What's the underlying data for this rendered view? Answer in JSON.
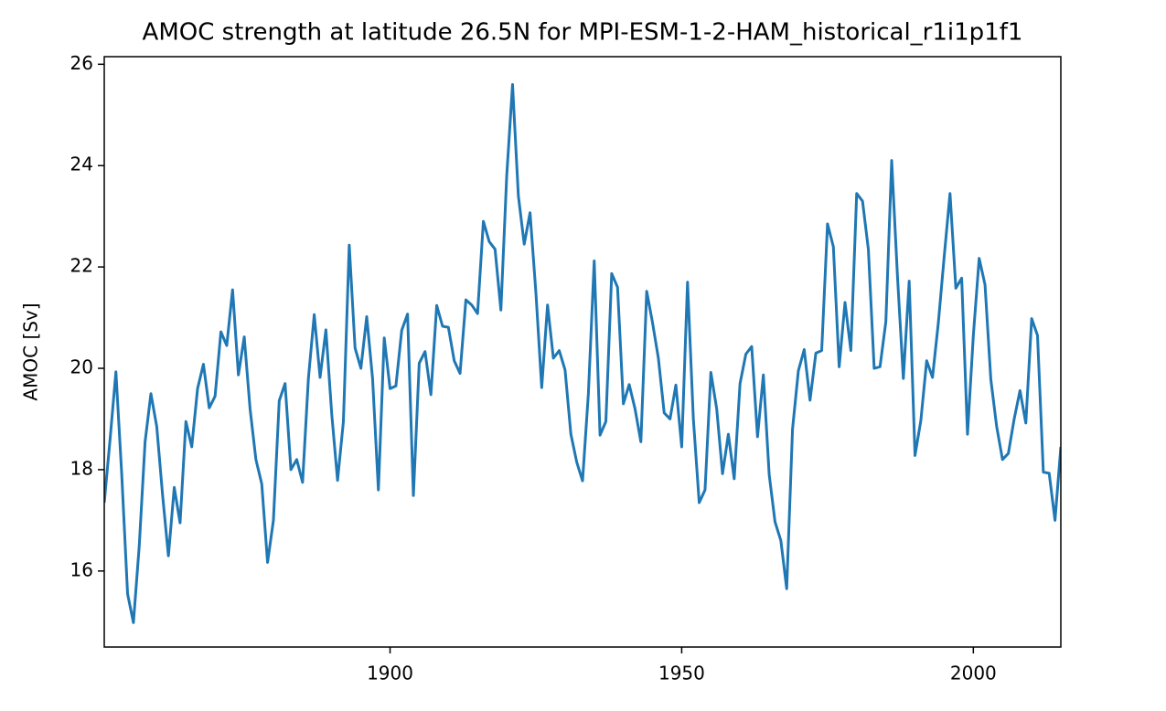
{
  "chart_data": {
    "type": "line",
    "title": "AMOC strength at latitude 26.5N for MPI-ESM-1-2-HAM_historical_r1i1p1f1",
    "ylabel": "AMOC [Sv]",
    "x": [
      1851,
      1852,
      1853,
      1854,
      1855,
      1856,
      1857,
      1858,
      1859,
      1860,
      1861,
      1862,
      1863,
      1864,
      1865,
      1866,
      1867,
      1868,
      1869,
      1870,
      1871,
      1872,
      1873,
      1874,
      1875,
      1876,
      1877,
      1878,
      1879,
      1880,
      1881,
      1882,
      1883,
      1884,
      1885,
      1886,
      1887,
      1888,
      1889,
      1890,
      1891,
      1892,
      1893,
      1894,
      1895,
      1896,
      1897,
      1898,
      1899,
      1900,
      1901,
      1902,
      1903,
      1904,
      1905,
      1906,
      1907,
      1908,
      1909,
      1910,
      1911,
      1912,
      1913,
      1914,
      1915,
      1916,
      1917,
      1918,
      1919,
      1920,
      1921,
      1922,
      1923,
      1924,
      1925,
      1926,
      1927,
      1928,
      1929,
      1930,
      1931,
      1932,
      1933,
      1934,
      1935,
      1936,
      1937,
      1938,
      1939,
      1940,
      1941,
      1942,
      1943,
      1944,
      1945,
      1946,
      1947,
      1948,
      1949,
      1950,
      1951,
      1952,
      1953,
      1954,
      1955,
      1956,
      1957,
      1958,
      1959,
      1960,
      1961,
      1962,
      1963,
      1964,
      1965,
      1966,
      1967,
      1968,
      1969,
      1970,
      1971,
      1972,
      1973,
      1974,
      1975,
      1976,
      1977,
      1978,
      1979,
      1980,
      1981,
      1982,
      1983,
      1984,
      1985,
      1986,
      1987,
      1988,
      1989,
      1990,
      1991,
      1992,
      1993,
      1994,
      1995,
      1996,
      1997,
      1998,
      1999,
      2000,
      2001,
      2002,
      2003,
      2004,
      2005,
      2006,
      2007,
      2008,
      2009,
      2010,
      2011,
      2012,
      2013,
      2014,
      2015
    ],
    "series": [
      {
        "color": "#1f77b4",
        "values": [
          17.35,
          18.6,
          19.93,
          17.9,
          15.55,
          14.98,
          16.5,
          18.55,
          19.5,
          18.85,
          17.5,
          16.3,
          17.65,
          16.95,
          18.95,
          18.45,
          19.6,
          20.08,
          19.22,
          19.45,
          20.72,
          20.45,
          21.55,
          19.87,
          20.62,
          19.2,
          18.2,
          17.72,
          16.17,
          17.0,
          19.36,
          19.7,
          18.0,
          18.2,
          17.75,
          19.8,
          21.06,
          19.82,
          20.76,
          19.1,
          17.79,
          18.95,
          22.43,
          20.4,
          20.0,
          21.02,
          19.8,
          17.6,
          20.6,
          19.6,
          19.65,
          20.75,
          21.07,
          17.49,
          20.1,
          20.33,
          19.48,
          21.24,
          20.83,
          20.81,
          20.15,
          19.9,
          21.35,
          21.25,
          21.08,
          22.9,
          22.5,
          22.35,
          21.15,
          23.8,
          25.6,
          23.4,
          22.45,
          23.07,
          21.5,
          19.62,
          21.25,
          20.2,
          20.35,
          19.97,
          18.7,
          18.15,
          17.78,
          19.5,
          22.12,
          18.68,
          18.95,
          21.87,
          21.6,
          19.3,
          19.68,
          19.2,
          18.55,
          21.52,
          20.9,
          20.2,
          19.12,
          19.0,
          19.67,
          18.45,
          21.7,
          19.0,
          17.35,
          17.6,
          19.92,
          19.2,
          17.92,
          18.7,
          17.82,
          19.7,
          20.28,
          20.43,
          18.65,
          19.87,
          17.9,
          16.97,
          16.6,
          15.65,
          18.8,
          19.95,
          20.37,
          19.37,
          20.3,
          20.35,
          22.85,
          22.4,
          20.03,
          21.3,
          20.35,
          23.45,
          23.3,
          22.35,
          20.0,
          20.03,
          20.92,
          24.1,
          21.8,
          19.8,
          21.72,
          18.28,
          18.97,
          20.15,
          19.82,
          20.9,
          22.2,
          23.45,
          21.58,
          21.78,
          18.7,
          20.65,
          22.17,
          21.65,
          19.78,
          18.85,
          18.2,
          18.32,
          19.0,
          19.56,
          18.92,
          20.98,
          20.65,
          17.95,
          17.93,
          17.0,
          18.45
        ]
      }
    ],
    "xlim": [
      1851,
      2015
    ],
    "xticks": [
      1900,
      1950,
      2000
    ],
    "ylim": [
      14.5,
      26.15
    ],
    "yticks": [
      16,
      18,
      20,
      22,
      24,
      26
    ]
  }
}
